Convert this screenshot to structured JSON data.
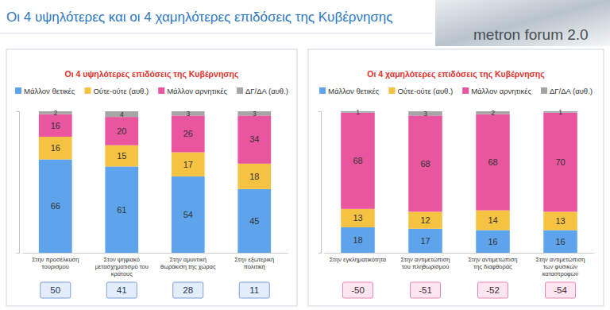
{
  "header": {
    "title": "Οι 4 υψηλότερες και οι 4 χαμηλότερες επιδόσεις της Κυβέρνησης",
    "logo": "metron forum 2.0"
  },
  "chart_data": [
    {
      "type": "bar",
      "stacked": true,
      "title": "Οι 4 υψηλότερες επιδόσεις της Κυβέρνησης",
      "categories": [
        "Στην προσέλκυση τουρισμού",
        "Στον ψηφιακό μετασχηματισμό του κράτους",
        "Στην αμυντική θωράκιση της χώρας",
        "Στην εξωτερική πολιτική"
      ],
      "series": [
        {
          "name": "Μάλλον θετικές",
          "color": "#5ea4ec",
          "values": [
            66,
            61,
            54,
            45
          ]
        },
        {
          "name": "Ούτε-ούτε (αυθ.)",
          "color": "#f5c242",
          "values": [
            16,
            15,
            17,
            18
          ]
        },
        {
          "name": "Μάλλον αρνητικές",
          "color": "#e9559f",
          "values": [
            16,
            20,
            26,
            34
          ]
        },
        {
          "name": "ΔΓ/ΔΑ (αυθ.)",
          "color": "#a5a5a5",
          "values": [
            2,
            4,
            3,
            3
          ]
        }
      ],
      "net_values": [
        50,
        41,
        28,
        11
      ],
      "ylim": [
        0,
        100
      ],
      "yticks": [
        0,
        100
      ],
      "data_labels": true,
      "tick_labels": "x",
      "legend": "top"
    },
    {
      "type": "bar",
      "stacked": true,
      "title": "Οι 4 χαμηλότερες επιδόσεις της Κυβέρνησης",
      "categories": [
        "Στην εγκληματικότητα",
        "Στην αντιμετώπιση του πληθωρισμού",
        "Στην αντιμετώπιση της διαφθοράς",
        "Στην αντιμετώπιση των φυσικών καταστροφών"
      ],
      "series": [
        {
          "name": "Μάλλον θετικές",
          "color": "#5ea4ec",
          "values": [
            18,
            17,
            16,
            16
          ]
        },
        {
          "name": "Ούτε-ούτε (αυθ.)",
          "color": "#f5c242",
          "values": [
            13,
            12,
            14,
            13
          ]
        },
        {
          "name": "Μάλλον αρνητικές",
          "color": "#e9559f",
          "values": [
            68,
            68,
            68,
            70
          ]
        },
        {
          "name": "ΔΓ/ΔΑ (αυθ.)",
          "color": "#a5a5a5",
          "values": [
            1,
            3,
            2,
            1
          ]
        }
      ],
      "net_values": [
        -50,
        -51,
        -52,
        -54
      ],
      "ylim": [
        0,
        100
      ],
      "yticks": [
        0,
        100
      ],
      "data_labels": true,
      "tick_labels": "x",
      "legend": "top"
    }
  ]
}
